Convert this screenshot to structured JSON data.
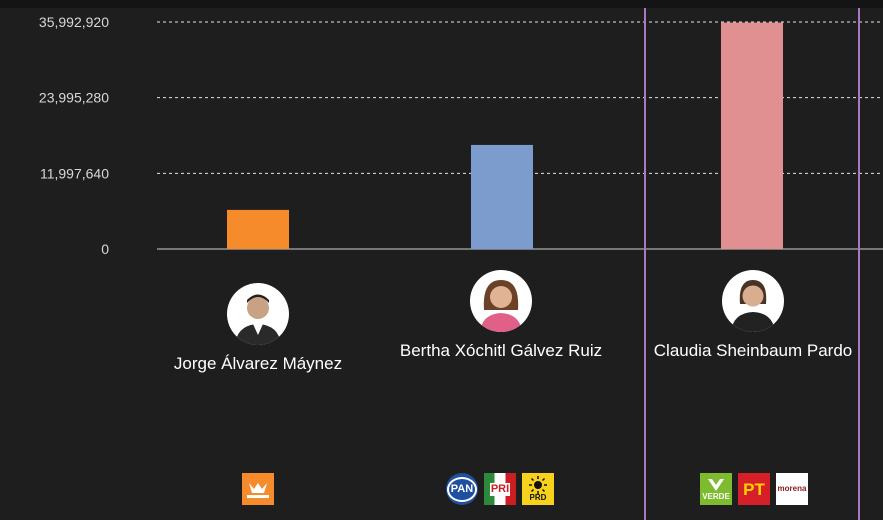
{
  "chart_data": {
    "type": "bar",
    "categories": [
      "Jorge Álvarez Máynez",
      "Bertha Xóchitl Gálvez Ruiz",
      "Claudia Sheinbaum Pardo"
    ],
    "values": [
      6200000,
      16500000,
      35900000
    ],
    "ylim": [
      0,
      35992920
    ],
    "yticks": [
      0,
      11997640,
      23995280,
      35992920
    ],
    "ytick_labels": [
      "0",
      "11,997,640",
      "23,995,280",
      "35,992,920"
    ],
    "grid": true,
    "colors": [
      "#f68b2c",
      "#7b9ccd",
      "#e09090"
    ],
    "highlighted_category": "Claudia Sheinbaum Pardo",
    "highlight_color": "#a97ac2"
  },
  "candidates": [
    {
      "name": "Jorge Álvarez Máynez",
      "photo_icon": "candidate-photo-icon",
      "party_logos": [
        {
          "id": "movimiento-ciudadano",
          "text": "MOVIMIENTO CIUDADANO",
          "bg": "#f68b2c",
          "fg": "#ffffff"
        }
      ]
    },
    {
      "name": "Bertha Xóchitl Gálvez Ruiz",
      "photo_icon": "candidate-photo-icon",
      "party_logos": [
        {
          "id": "pan",
          "text": "PAN",
          "bg": "#1f4fa0",
          "fg": "#ffffff"
        },
        {
          "id": "pri",
          "text": "PRI",
          "bg": "#ffffff",
          "fg": "#cc1f24"
        },
        {
          "id": "prd",
          "text": "PRD",
          "bg": "#f8d11c",
          "fg": "#111111"
        }
      ]
    },
    {
      "name": "Claudia Sheinbaum Pardo",
      "photo_icon": "candidate-photo-icon",
      "party_logos": [
        {
          "id": "verde",
          "text": "VERDE",
          "bg": "#7dbb2f",
          "fg": "#ffffff"
        },
        {
          "id": "pt",
          "text": "PT",
          "bg": "#d61f26",
          "fg": "#ffd400"
        },
        {
          "id": "morena",
          "text": "morena",
          "bg": "#ffffff",
          "fg": "#8b1a1a"
        }
      ]
    }
  ]
}
